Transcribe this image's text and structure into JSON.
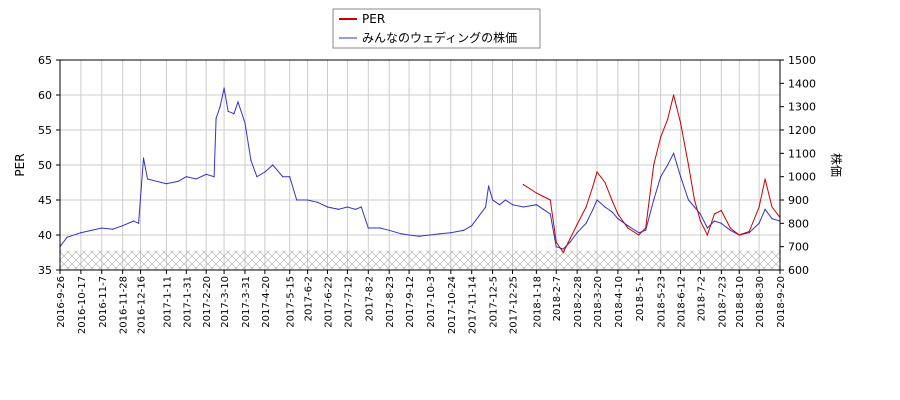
{
  "chart_data": {
    "type": "line",
    "title": "",
    "legend": {
      "placement": "top-center",
      "entries": [
        {
          "name": "PER",
          "color": "#cc0000"
        },
        {
          "name": "みんなのウェディングの株価",
          "color": "#3333cc"
        }
      ]
    },
    "left_axis": {
      "label": "PER",
      "min": 35,
      "max": 65,
      "ticks": [
        35,
        40,
        45,
        50,
        55,
        60,
        65
      ]
    },
    "right_axis": {
      "label": "株価",
      "min": 600,
      "max": 1500,
      "ticks": [
        600,
        700,
        800,
        900,
        1000,
        1100,
        1200,
        1300,
        1400,
        1500
      ]
    },
    "x_axis": {
      "start": "2016-9-26",
      "end": "2018-9-20",
      "tick_labels": [
        "2016-9-26",
        "2016-10-17",
        "2016-11-7",
        "2016-11-28",
        "2016-12-16",
        "2017-1-11",
        "2017-1-31",
        "2017-2-20",
        "2017-3-10",
        "2017-3-31",
        "2017-4-20",
        "2017-5-15",
        "2017-6-2",
        "2017-6-22",
        "2017-7-12",
        "2017-8-2",
        "2017-8-23",
        "2017-9-12",
        "2017-10-3",
        "2017-10-24",
        "2017-11-14",
        "2017-12-5",
        "2017-12-25",
        "2018-1-18",
        "2018-2-7",
        "2018-2-28",
        "2018-3-20",
        "2018-4-10",
        "2018-5-1",
        "2018-5-23",
        "2018-6-12",
        "2018-7-2",
        "2018-7-23",
        "2018-8-10",
        "2018-8-30",
        "2018-9-20"
      ]
    },
    "grid": true,
    "hatched_band": {
      "axis": "left",
      "from": 35,
      "to": 37.8
    },
    "series": [
      {
        "name": "みんなのウェディングの株価",
        "axis": "right",
        "color": "#3333cc",
        "points": [
          [
            "2016-9-26",
            700
          ],
          [
            "2016-10-3",
            740
          ],
          [
            "2016-10-17",
            760
          ],
          [
            "2016-10-28",
            770
          ],
          [
            "2016-11-7",
            780
          ],
          [
            "2016-11-18",
            775
          ],
          [
            "2016-11-28",
            790
          ],
          [
            "2016-12-9",
            810
          ],
          [
            "2016-12-14",
            800
          ],
          [
            "2016-12-19",
            1080
          ],
          [
            "2016-12-23",
            990
          ],
          [
            "2017-1-11",
            970
          ],
          [
            "2017-1-23",
            980
          ],
          [
            "2017-1-31",
            1000
          ],
          [
            "2017-2-10",
            990
          ],
          [
            "2017-2-20",
            1010
          ],
          [
            "2017-2-28",
            1000
          ],
          [
            "2017-3-2",
            1250
          ],
          [
            "2017-3-6",
            1300
          ],
          [
            "2017-3-10",
            1380
          ],
          [
            "2017-3-14",
            1280
          ],
          [
            "2017-3-20",
            1270
          ],
          [
            "2017-3-24",
            1320
          ],
          [
            "2017-3-31",
            1230
          ],
          [
            "2017-4-6",
            1070
          ],
          [
            "2017-4-12",
            1000
          ],
          [
            "2017-4-20",
            1020
          ],
          [
            "2017-4-28",
            1050
          ],
          [
            "2017-5-8",
            1000
          ],
          [
            "2017-5-15",
            1000
          ],
          [
            "2017-5-22",
            900
          ],
          [
            "2017-6-2",
            900
          ],
          [
            "2017-6-12",
            890
          ],
          [
            "2017-6-22",
            870
          ],
          [
            "2017-7-3",
            860
          ],
          [
            "2017-7-12",
            870
          ],
          [
            "2017-7-20",
            860
          ],
          [
            "2017-7-26",
            870
          ],
          [
            "2017-8-2",
            780
          ],
          [
            "2017-8-14",
            780
          ],
          [
            "2017-8-23",
            770
          ],
          [
            "2017-9-4",
            755
          ],
          [
            "2017-9-12",
            750
          ],
          [
            "2017-9-22",
            745
          ],
          [
            "2017-10-3",
            750
          ],
          [
            "2017-10-13",
            755
          ],
          [
            "2017-10-24",
            760
          ],
          [
            "2017-11-6",
            770
          ],
          [
            "2017-11-14",
            790
          ],
          [
            "2017-11-21",
            830
          ],
          [
            "2017-11-28",
            870
          ],
          [
            "2017-12-1",
            960
          ],
          [
            "2017-12-5",
            900
          ],
          [
            "2017-12-12",
            880
          ],
          [
            "2017-12-18",
            900
          ],
          [
            "2017-12-25",
            880
          ],
          [
            "2018-1-5",
            870
          ],
          [
            "2018-1-18",
            880
          ],
          [
            "2018-1-25",
            860
          ],
          [
            "2018-2-1",
            840
          ],
          [
            "2018-2-7",
            700
          ],
          [
            "2018-2-14",
            690
          ],
          [
            "2018-2-21",
            720
          ],
          [
            "2018-2-28",
            760
          ],
          [
            "2018-3-9",
            800
          ],
          [
            "2018-3-16",
            860
          ],
          [
            "2018-3-20",
            900
          ],
          [
            "2018-3-28",
            870
          ],
          [
            "2018-4-4",
            850
          ],
          [
            "2018-4-10",
            820
          ],
          [
            "2018-4-20",
            790
          ],
          [
            "2018-5-1",
            760
          ],
          [
            "2018-5-8",
            770
          ],
          [
            "2018-5-16",
            900
          ],
          [
            "2018-5-23",
            1000
          ],
          [
            "2018-5-30",
            1050
          ],
          [
            "2018-6-5",
            1100
          ],
          [
            "2018-6-12",
            1000
          ],
          [
            "2018-6-20",
            900
          ],
          [
            "2018-6-26",
            870
          ],
          [
            "2018-7-2",
            840
          ],
          [
            "2018-7-9",
            780
          ],
          [
            "2018-7-16",
            810
          ],
          [
            "2018-7-23",
            800
          ],
          [
            "2018-8-1",
            770
          ],
          [
            "2018-8-10",
            750
          ],
          [
            "2018-8-20",
            760
          ],
          [
            "2018-8-30",
            800
          ],
          [
            "2018-9-5",
            860
          ],
          [
            "2018-9-12",
            820
          ],
          [
            "2018-9-20",
            810
          ]
        ]
      },
      {
        "name": "PER",
        "axis": "left",
        "color": "#cc0000",
        "points": [
          [
            "2018-1-5",
            47.2
          ],
          [
            "2018-1-18",
            46.0
          ],
          [
            "2018-1-25",
            45.5
          ],
          [
            "2018-2-1",
            45.0
          ],
          [
            "2018-2-7",
            39.0
          ],
          [
            "2018-2-14",
            37.5
          ],
          [
            "2018-2-21",
            39.5
          ],
          [
            "2018-2-28",
            41.5
          ],
          [
            "2018-3-9",
            44.0
          ],
          [
            "2018-3-16",
            47.0
          ],
          [
            "2018-3-20",
            49.0
          ],
          [
            "2018-3-28",
            47.5
          ],
          [
            "2018-4-4",
            45.0
          ],
          [
            "2018-4-10",
            43.0
          ],
          [
            "2018-4-20",
            41.0
          ],
          [
            "2018-5-1",
            40.0
          ],
          [
            "2018-5-8",
            41.0
          ],
          [
            "2018-5-16",
            50.0
          ],
          [
            "2018-5-23",
            54.0
          ],
          [
            "2018-5-30",
            56.5
          ],
          [
            "2018-6-5",
            60.0
          ],
          [
            "2018-6-12",
            56.0
          ],
          [
            "2018-6-20",
            50.0
          ],
          [
            "2018-6-26",
            45.0
          ],
          [
            "2018-7-2",
            42.0
          ],
          [
            "2018-7-9",
            40.0
          ],
          [
            "2018-7-16",
            43.0
          ],
          [
            "2018-7-23",
            43.5
          ],
          [
            "2018-8-1",
            41.0
          ],
          [
            "2018-8-10",
            40.0
          ],
          [
            "2018-8-20",
            40.5
          ],
          [
            "2018-8-30",
            44.0
          ],
          [
            "2018-9-5",
            48.0
          ],
          [
            "2018-9-12",
            44.0
          ],
          [
            "2018-9-20",
            42.5
          ]
        ]
      }
    ]
  }
}
